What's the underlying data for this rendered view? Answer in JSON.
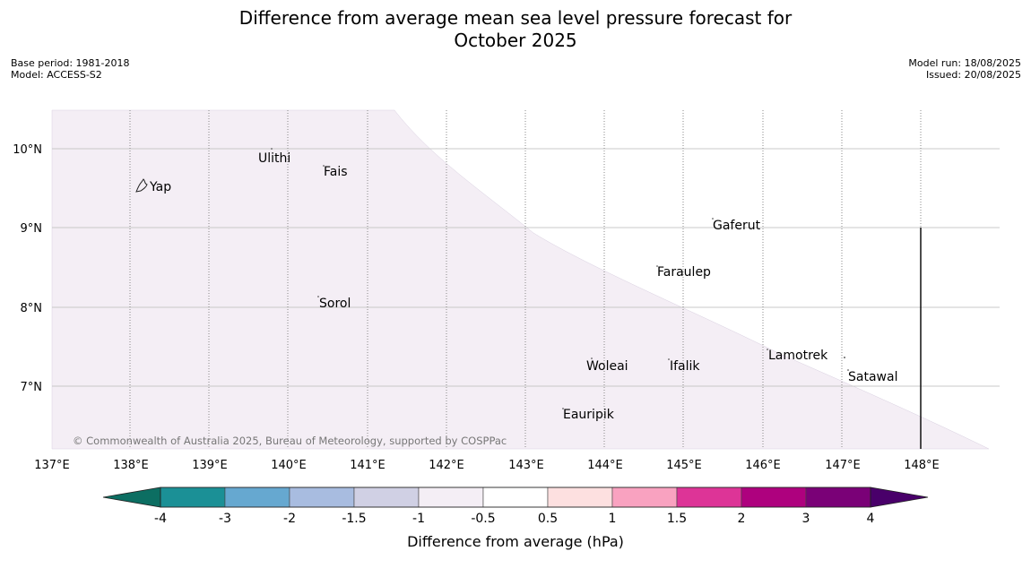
{
  "title": {
    "line1": "Difference from average mean sea level pressure forecast for",
    "line2": "October 2025"
  },
  "meta_left": {
    "base_period": "Base period: 1981-2018",
    "model": "Model: ACCESS-S2"
  },
  "meta_right": {
    "model_run": "Model run: 18/08/2025",
    "issued": "Issued: 20/08/2025"
  },
  "map": {
    "copyright": "© Commonwealth of Australia 2025, Bureau of Meteorology, supported by COSPPac",
    "lat_labels": [
      "10°N",
      "9°N",
      "8°N",
      "7°N"
    ],
    "lon_labels": [
      "137°E",
      "138°E",
      "139°E",
      "140°E",
      "141°E",
      "142°E",
      "143°E",
      "144°E",
      "145°E",
      "146°E",
      "147°E",
      "148°E"
    ],
    "places": [
      "Ulithi",
      "Fais",
      "Yap",
      "Gaferut",
      "Faraulep",
      "Sorol",
      "Lamotrek",
      "Woleai",
      "Ifalik",
      "Satawal",
      "Eauripik"
    ],
    "anomaly_band": "-1 to -0.5"
  },
  "colorbar": {
    "ticks": [
      "-4",
      "-3",
      "-2",
      "-1.5",
      "-1",
      "-0.5",
      "0.5",
      "1",
      "1.5",
      "2",
      "3",
      "4"
    ],
    "label": "Difference from average (hPa)",
    "colors": [
      "#0c6e62",
      "#1b9096",
      "#66a8d0",
      "#a8bce0",
      "#d0d0e4",
      "#f4eef5",
      "#ffffff",
      "#fde0e0",
      "#f9a2c0",
      "#dd3497",
      "#ae017e",
      "#7a0177",
      "#49006a"
    ]
  }
}
